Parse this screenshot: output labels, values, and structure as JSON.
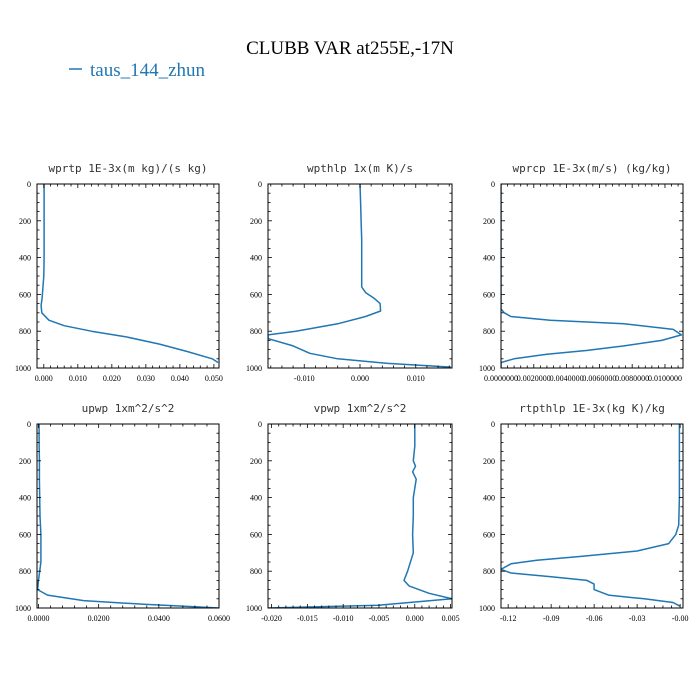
{
  "figure": {
    "title": "CLUBB VAR at255E,-17N",
    "legend": [
      {
        "label": "taus_144_zhun",
        "color": "#1f77b4"
      }
    ]
  },
  "chart_data": [
    {
      "type": "line",
      "title": "wprtp  1E-3x(m kg)/(s kg)",
      "xlim": [
        -0.002,
        0.0515
      ],
      "ylim": [
        1000,
        0
      ],
      "xticks": [
        0.0,
        0.01,
        0.02,
        0.03,
        0.04,
        0.05
      ],
      "xtick_labels": [
        "0.000",
        "0.010",
        "0.020",
        "0.030",
        "0.040",
        "0.050"
      ],
      "yticks": [
        0,
        200,
        400,
        600,
        800,
        1000
      ],
      "ytick_labels": [
        "0",
        "200",
        "400",
        "600",
        "800",
        "1000"
      ],
      "series": [
        {
          "color": "#1f77b4",
          "x": [
            0.0001,
            0.0001,
            0.0001,
            0.0001,
            0.0001,
            0.0,
            -0.0005,
            -0.0008,
            -0.0006,
            0.0015,
            0.006,
            0.014,
            0.024,
            0.034,
            0.042,
            0.0495,
            0.0512
          ],
          "y": [
            0,
            100,
            200,
            300,
            400,
            500,
            620,
            660,
            700,
            740,
            770,
            800,
            830,
            870,
            910,
            950,
            970
          ]
        }
      ]
    },
    {
      "type": "line",
      "title": "wpthlp  1x(m K)/s",
      "xlim": [
        -0.0165,
        0.0165
      ],
      "ylim": [
        1000,
        0
      ],
      "xticks": [
        -0.01,
        0.0,
        0.01
      ],
      "xtick_labels": [
        "-0.010",
        "0.000",
        "0.010"
      ],
      "yticks": [
        0,
        200,
        400,
        600,
        800,
        1000
      ],
      "ytick_labels": [
        "0",
        "200",
        "400",
        "600",
        "800",
        "1000"
      ],
      "series": [
        {
          "color": "#1f77b4",
          "x": [
            0.0,
            0.0001,
            0.0002,
            0.0003,
            0.0003,
            0.0003,
            0.0003,
            0.001,
            0.0025,
            0.0036,
            0.0037,
            0.001,
            -0.004,
            -0.0115,
            -0.0165,
            -0.0165,
            -0.012,
            -0.009,
            -0.004,
            0.005,
            0.0163
          ],
          "y": [
            0,
            100,
            200,
            300,
            400,
            500,
            560,
            590,
            620,
            650,
            690,
            720,
            760,
            800,
            820,
            840,
            880,
            920,
            950,
            975,
            995
          ]
        }
      ]
    },
    {
      "type": "line",
      "title": "wprcp  1E-3x(m/s) (kg/kg)",
      "xlim": [
        0.0,
        0.0111
      ],
      "ylim": [
        1000,
        0
      ],
      "xticks": [
        0.0,
        0.002,
        0.004,
        0.006,
        0.008,
        0.01
      ],
      "xtick_labels": [
        "0.0000000",
        "0.0020000",
        "0.0040000",
        "0.0060000",
        "0.0080000",
        "0.0100000"
      ],
      "yticks": [
        0,
        200,
        400,
        600,
        800,
        1000
      ],
      "ytick_labels": [
        "0",
        "200",
        "400",
        "600",
        "800",
        "1000"
      ],
      "series": [
        {
          "color": "#1f77b4",
          "x": [
            0.0,
            0.0,
            0.0,
            0.0,
            0.0,
            0.0002,
            0.0006,
            0.003,
            0.0075,
            0.0105,
            0.011,
            0.0098,
            0.0075,
            0.0052,
            0.0028,
            0.0008,
            0.0,
            0.0
          ],
          "y": [
            0,
            200,
            400,
            600,
            680,
            700,
            720,
            740,
            760,
            790,
            820,
            850,
            880,
            905,
            925,
            950,
            970,
            1000
          ]
        }
      ]
    },
    {
      "type": "line",
      "title": "upwp  1xm^2/s^2",
      "xlim": [
        -0.0005,
        0.06
      ],
      "ylim": [
        1000,
        0
      ],
      "xticks": [
        0.0,
        0.02,
        0.04,
        0.06
      ],
      "xtick_labels": [
        "0.0000",
        "0.0200",
        "0.0400",
        "0.0600"
      ],
      "yticks": [
        0,
        200,
        400,
        600,
        800,
        1000
      ],
      "ytick_labels": [
        "0",
        "200",
        "400",
        "600",
        "800",
        "1000"
      ],
      "series": [
        {
          "color": "#1f77b4",
          "x": [
            0.0002,
            0.0002,
            0.0003,
            0.0003,
            0.0004,
            0.0005,
            0.0008,
            0.0008,
            0.0,
            -0.0003,
            0.003,
            0.015,
            0.035,
            0.052,
            0.0598
          ],
          "y": [
            0,
            100,
            200,
            300,
            400,
            500,
            600,
            750,
            850,
            900,
            930,
            960,
            980,
            993,
            1000
          ]
        }
      ]
    },
    {
      "type": "line",
      "title": "vpwp  1xm^2/s^2",
      "xlim": [
        -0.0205,
        0.0052
      ],
      "ylim": [
        1000,
        0
      ],
      "xticks": [
        -0.02,
        -0.015,
        -0.01,
        -0.005,
        0.0,
        0.005
      ],
      "xtick_labels": [
        "-0.020",
        "-0.015",
        "-0.010",
        "-0.005",
        "0.000",
        "0.005"
      ],
      "yticks": [
        0,
        200,
        400,
        600,
        800,
        1000
      ],
      "ytick_labels": [
        "0",
        "200",
        "400",
        "600",
        "800",
        "1000"
      ],
      "series": [
        {
          "color": "#1f77b4",
          "x": [
            0.0,
            0.0,
            -0.0002,
            0.0001,
            -0.0003,
            0.0002,
            -0.0002,
            -0.0002,
            -0.0003,
            -0.0002,
            -0.001,
            -0.0015,
            -0.0008,
            0.002,
            0.0052,
            -0.005,
            -0.0205
          ],
          "y": [
            0,
            120,
            200,
            230,
            260,
            300,
            400,
            500,
            600,
            700,
            800,
            850,
            880,
            920,
            950,
            985,
            1000
          ]
        }
      ]
    },
    {
      "type": "line",
      "title": "rtpthlp  1E-3x(kg K)/kg",
      "xlim": [
        -0.125,
        0.002
      ],
      "ylim": [
        1000,
        0
      ],
      "xticks": [
        -0.12,
        -0.09,
        -0.06,
        -0.03,
        0.0
      ],
      "xtick_labels": [
        "-0.12",
        "-0.09",
        "-0.06",
        "-0.03",
        "-0.00"
      ],
      "yticks": [
        0,
        200,
        400,
        600,
        800,
        1000
      ],
      "ytick_labels": [
        "0",
        "200",
        "400",
        "600",
        "800",
        "1000"
      ],
      "series": [
        {
          "color": "#1f77b4",
          "x": [
            -0.0005,
            -0.0005,
            -0.0005,
            -0.001,
            -0.003,
            -0.008,
            -0.03,
            -0.07,
            -0.1,
            -0.118,
            -0.125,
            -0.118,
            -0.09,
            -0.065,
            -0.06,
            -0.06,
            -0.05,
            -0.025,
            -0.005,
            0.0
          ],
          "y": [
            0,
            200,
            400,
            550,
            600,
            650,
            690,
            720,
            740,
            760,
            790,
            810,
            830,
            850,
            870,
            900,
            930,
            950,
            970,
            990
          ]
        }
      ]
    }
  ]
}
